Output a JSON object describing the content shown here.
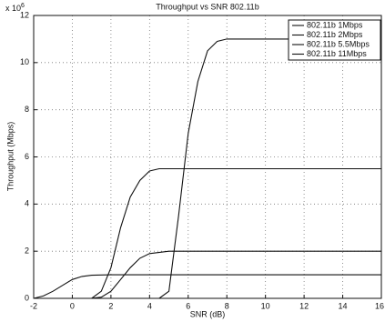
{
  "chart_data": {
    "type": "line",
    "title": "Throughput vs SNR 802.11b",
    "xlabel": "SNR (dB)",
    "ylabel": "Throughput (Mbps)",
    "y_multiplier": {
      "base": "x 10",
      "exponent": "6"
    },
    "xlim": [
      -2,
      16
    ],
    "xticks": [
      -2,
      0,
      2,
      4,
      6,
      8,
      10,
      12,
      14,
      16
    ],
    "ylim": [
      0,
      12
    ],
    "yticks": [
      0,
      2,
      4,
      6,
      8,
      10,
      12
    ],
    "grid": true,
    "legend": "top-right",
    "series": [
      {
        "name": "802.11b 1Mbps",
        "color": "#111111",
        "x": [
          -2,
          -1.5,
          -1,
          -0.5,
          0,
          0.5,
          1,
          2,
          16
        ],
        "values": [
          0,
          0.1,
          0.3,
          0.55,
          0.8,
          0.93,
          0.98,
          1,
          1
        ]
      },
      {
        "name": "802.11b 2Mbps",
        "color": "#111111",
        "x": [
          1,
          1.5,
          2,
          2.5,
          3,
          3.5,
          4,
          5,
          16
        ],
        "values": [
          0,
          0.05,
          0.3,
          0.8,
          1.3,
          1.7,
          1.9,
          2,
          2
        ]
      },
      {
        "name": "802.11b 5.5Mbps",
        "color": "#111111",
        "x": [
          1,
          1.5,
          2,
          2.5,
          3,
          3.5,
          4,
          4.5,
          16
        ],
        "values": [
          0,
          0.3,
          1.3,
          3,
          4.3,
          5,
          5.4,
          5.5,
          5.5
        ]
      },
      {
        "name": "802.11b 11Mbps",
        "color": "#111111",
        "x": [
          4.5,
          5,
          5.5,
          6,
          6.5,
          7,
          7.5,
          8,
          16
        ],
        "values": [
          0,
          0.3,
          3.5,
          7,
          9.2,
          10.5,
          10.9,
          11,
          11
        ]
      }
    ]
  }
}
